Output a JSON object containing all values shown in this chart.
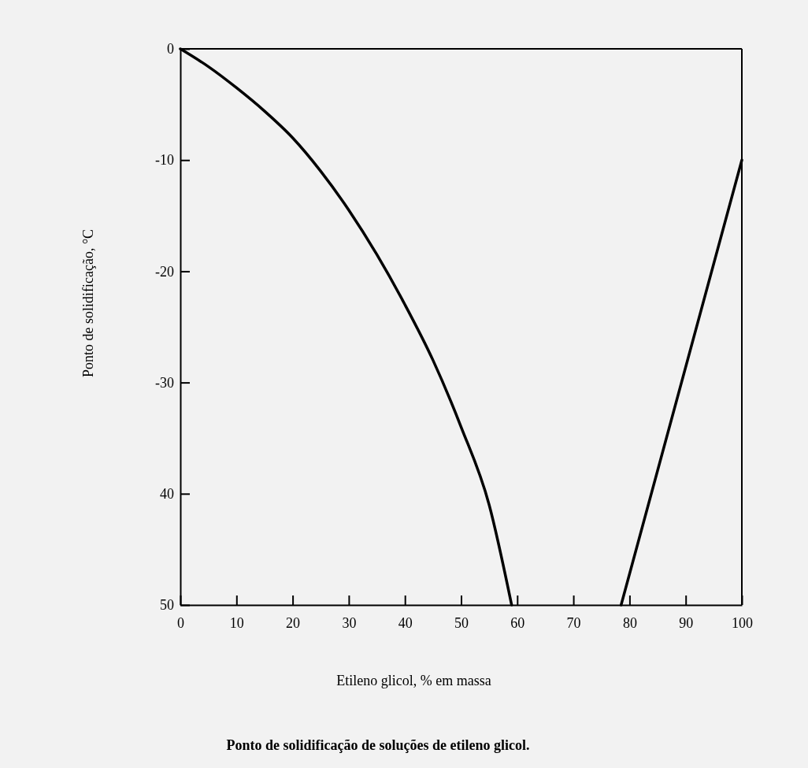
{
  "chart_data": {
    "type": "line",
    "title": "Ponto de solidificação de soluções de etileno glicol.",
    "xlabel": "Etileno glicol, % em massa",
    "ylabel": "Ponto de solidificação, °C",
    "series": [
      {
        "color": "#000000",
        "x": [
          0,
          5,
          10,
          15,
          20,
          25,
          30,
          35,
          40,
          45,
          50,
          55,
          59
        ],
        "values": [
          0,
          -1.6,
          -3.5,
          -5.6,
          -8,
          -11,
          -14.5,
          -18.5,
          -23,
          -28,
          -34,
          -41,
          -50
        ]
      },
      {
        "color": "#000000",
        "x": [
          78.5,
          100
        ],
        "values": [
          -50,
          -10
        ]
      }
    ],
    "xlim": [
      0,
      100
    ],
    "ylim": [
      -50,
      0
    ],
    "xticks": [
      0,
      10,
      20,
      30,
      40,
      50,
      60,
      70,
      80,
      90,
      100
    ],
    "yticks": [
      0,
      {
        "value": -10,
        "label": "-10"
      },
      {
        "value": -20,
        "label": "-20"
      },
      {
        "value": -30,
        "label": "-30"
      },
      {
        "value": -40,
        "label": "40"
      },
      {
        "value": -50,
        "label": "50"
      }
    ],
    "grid": false,
    "marker": "none",
    "line_style": "solid"
  }
}
